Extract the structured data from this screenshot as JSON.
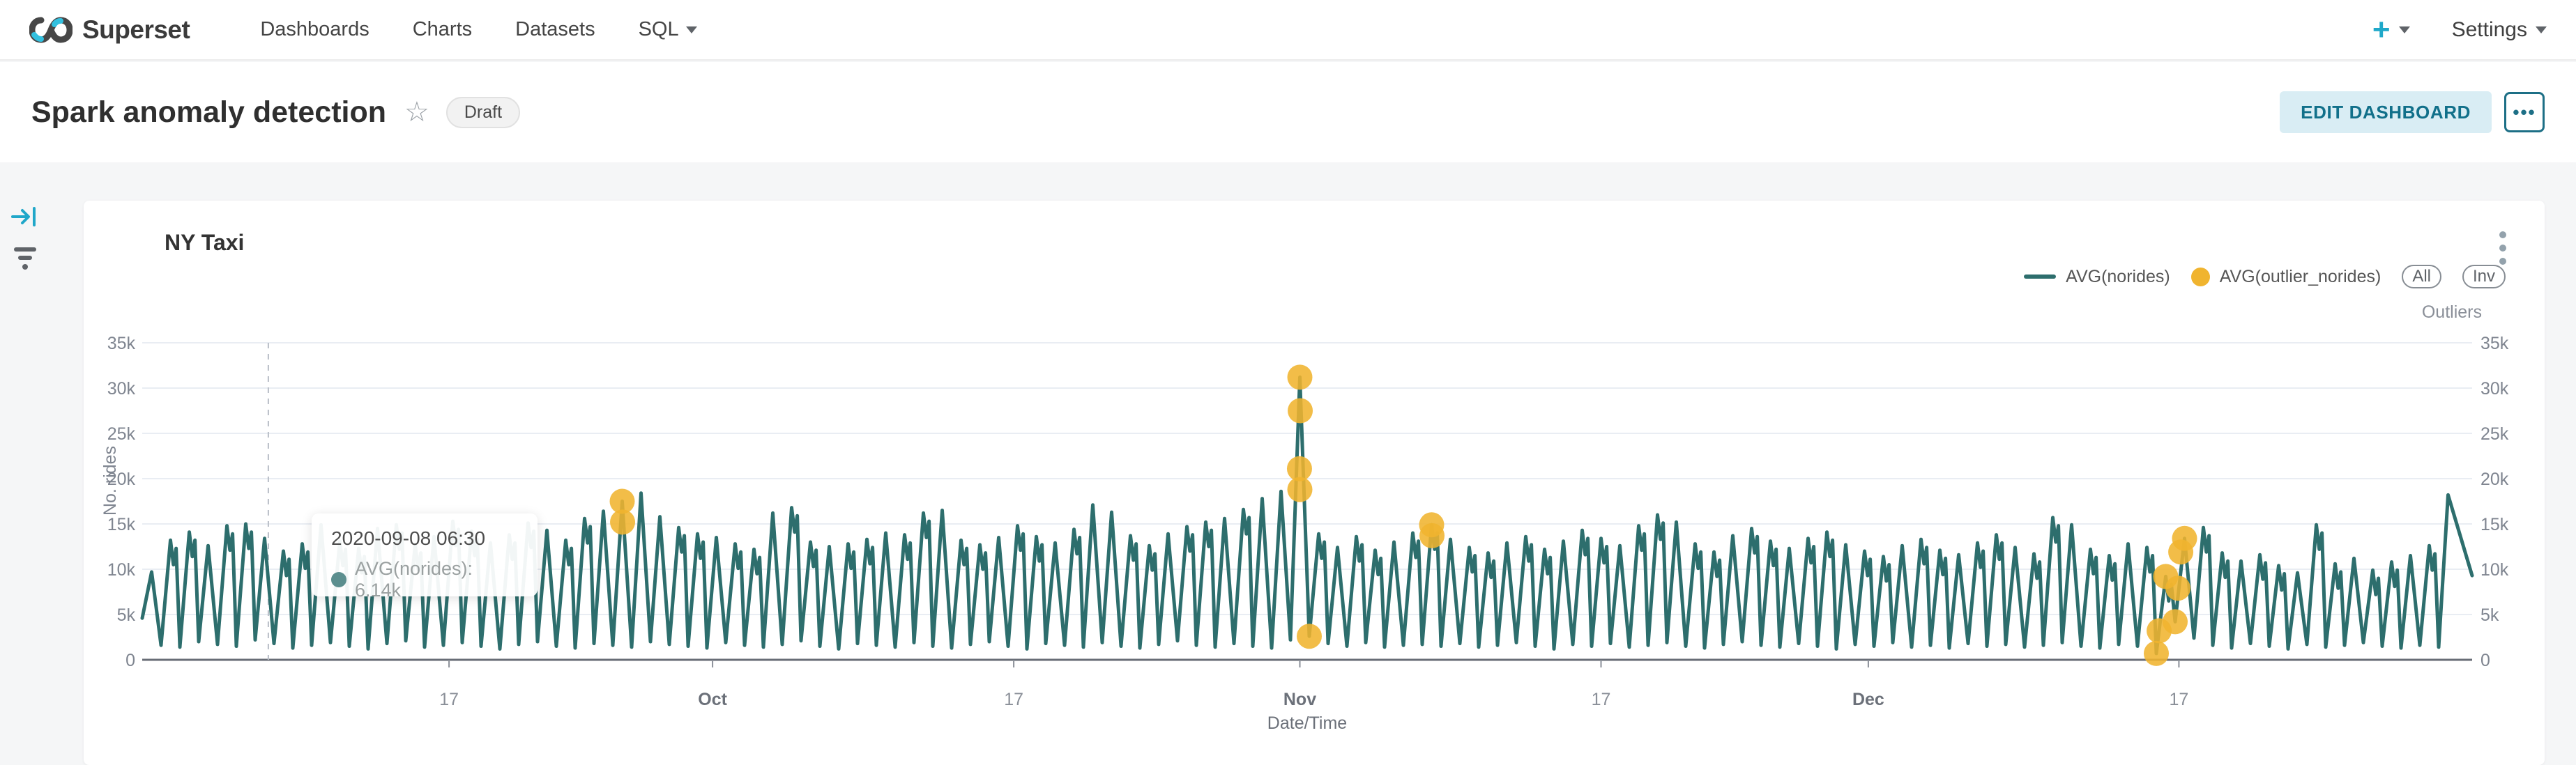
{
  "header": {
    "brand": "Superset",
    "nav": [
      "Dashboards",
      "Charts",
      "Datasets",
      "SQL"
    ],
    "plus_label": "+",
    "settings_label": "Settings"
  },
  "titlebar": {
    "title": "Spark anomaly detection",
    "star_icon": "☆",
    "badge": "Draft",
    "edit_button": "EDIT DASHBOARD",
    "more_button": "•••"
  },
  "panel": {
    "title": "NY Taxi",
    "kebab_icon": "vertical-ellipsis"
  },
  "legend": {
    "items": [
      {
        "label": "AVG(norides)",
        "swatch": "line",
        "color": "#2d6e6d"
      },
      {
        "label": "AVG(outlier_norides)",
        "swatch": "dot",
        "color": "#f0b42f"
      }
    ],
    "buttons": [
      "All",
      "Inv"
    ],
    "right_axis_title": "Outliers"
  },
  "tooltip": {
    "title": "2020-09-08 06:30",
    "row": "AVG(norides): 6.14k",
    "dot_color": "#5c8f8f"
  },
  "colors": {
    "line": "#2d6e6d",
    "outlier": "#f0b42f",
    "accent": "#20a7c9",
    "grid": "#e9edf3",
    "axis": "#686d76",
    "tick_text": "#7f8590",
    "month_text": "#6b7079",
    "crosshair": "#b9bec7"
  },
  "chart_data": {
    "type": "line",
    "title": "NY Taxi",
    "xlabel": "Date/Time",
    "ylabel": "No. rides",
    "y2label": "Outliers",
    "ylim": [
      0,
      35000
    ],
    "y_ticks": [
      "0",
      "5k",
      "10k",
      "15k",
      "20k",
      "25k",
      "30k",
      "35k"
    ],
    "x_ticks": [
      {
        "day": 16.3,
        "label": "17",
        "month": false
      },
      {
        "day": 30.3,
        "label": "Oct",
        "month": true
      },
      {
        "day": 46.3,
        "label": "17",
        "month": false
      },
      {
        "day": 61.5,
        "label": "Nov",
        "month": true
      },
      {
        "day": 77.5,
        "label": "17",
        "month": false
      },
      {
        "day": 91.7,
        "label": "Dec",
        "month": true
      },
      {
        "day": 108.2,
        "label": "17",
        "month": false
      }
    ],
    "crosshair_day": 6.7,
    "series_name": "AVG(norides)",
    "outlier_series_name": "AVG(outlier_norides)",
    "daily_peaks_k": [
      9.7,
      13.2,
      14.1,
      12.6,
      14.8,
      15.0,
      13.4,
      12.0,
      12.8,
      14.9,
      13.1,
      12.3,
      14.5,
      14.9,
      12.7,
      13.6,
      15.3,
      14.2,
      12.9,
      13.8,
      15.1,
      14.3,
      13.2,
      15.6,
      16.4,
      17.5,
      18.4,
      15.8,
      14.6,
      13.9,
      13.5,
      12.8,
      12.2,
      16.2,
      16.8,
      13.0,
      12.5,
      12.8,
      13.3,
      14.0,
      13.8,
      16.2,
      16.5,
      13.2,
      12.7,
      13.5,
      14.8,
      13.6,
      12.9,
      14.4,
      17.1,
      16.3,
      13.7,
      12.6,
      13.9,
      14.7,
      15.2,
      15.6,
      16.6,
      17.8,
      18.6,
      31.2,
      13.9,
      12.4,
      13.6,
      12.1,
      13.0,
      14.0,
      14.9,
      13.3,
      12.4,
      11.8,
      12.9,
      13.6,
      12.2,
      13.1,
      14.3,
      13.4,
      12.6,
      14.8,
      16.0,
      15.2,
      12.8,
      11.9,
      13.7,
      14.5,
      13.1,
      12.3,
      13.4,
      14.1,
      12.7,
      12.0,
      11.4,
      12.6,
      13.3,
      12.1,
      11.6,
      12.9,
      13.8,
      12.4,
      11.7,
      15.7,
      14.9,
      12.2,
      11.5,
      12.8,
      12.4,
      9.2,
      13.4,
      14.6,
      11.8,
      10.9,
      11.6,
      10.4,
      9.6,
      14.9,
      10.6,
      11.2,
      9.9,
      10.8,
      11.5,
      12.6,
      18.2
    ],
    "daily_troughs_k": [
      4.6,
      1.6,
      1.4,
      2.0,
      1.7,
      1.5,
      2.2,
      1.8,
      1.3,
      1.6,
      1.9,
      1.5,
      1.2,
      1.8,
      2.1,
      1.4,
      1.6,
      1.9,
      1.5,
      1.2,
      1.7,
      2.0,
      1.5,
      1.3,
      1.8,
      1.6,
      1.4,
      2.0,
      1.7,
      1.5,
      1.3,
      1.9,
      1.6,
      1.4,
      1.7,
      2.1,
      1.5,
      1.2,
      1.8,
      1.6,
      1.4,
      1.9,
      1.5,
      1.3,
      1.7,
      2.0,
      1.5,
      1.2,
      1.8,
      1.6,
      1.4,
      1.9,
      1.5,
      1.3,
      1.7,
      2.1,
      1.6,
      1.4,
      1.8,
      1.5,
      1.3,
      2.2,
      2.6,
      1.8,
      1.5,
      1.9,
      1.4,
      1.6,
      1.7,
      1.5,
      1.8,
      1.4,
      1.6,
      1.9,
      1.5,
      1.2,
      1.7,
      1.5,
      1.8,
      1.4,
      1.6,
      1.9,
      1.5,
      1.3,
      1.7,
      2.0,
      1.6,
      1.4,
      1.8,
      1.5,
      1.2,
      1.7,
      1.5,
      1.9,
      1.4,
      1.6,
      1.3,
      1.8,
      1.5,
      1.7,
      1.4,
      1.6,
      1.9,
      1.5,
      1.3,
      1.7,
      1.5,
      0.7,
      4.2,
      2.4,
      1.6,
      1.3,
      1.8,
      1.5,
      1.2,
      1.7,
      1.4,
      1.6,
      1.9,
      1.5,
      1.3,
      1.6,
      1.4
    ],
    "series_end_value_k": 9.3,
    "outliers": [
      {
        "day": 25.5,
        "value_k": 17.5
      },
      {
        "day": 25.52,
        "value_k": 15.2
      },
      {
        "day": 61.5,
        "value_k": 31.2
      },
      {
        "day": 61.52,
        "value_k": 27.5
      },
      {
        "day": 61.48,
        "value_k": 21.1
      },
      {
        "day": 61.5,
        "value_k": 18.8
      },
      {
        "day": 62.0,
        "value_k": 2.6
      },
      {
        "day": 68.5,
        "value_k": 14.9
      },
      {
        "day": 68.52,
        "value_k": 13.7
      },
      {
        "day": 107.0,
        "value_k": 0.7
      },
      {
        "day": 107.15,
        "value_k": 3.2
      },
      {
        "day": 107.5,
        "value_k": 9.2
      },
      {
        "day": 108.0,
        "value_k": 4.2
      },
      {
        "day": 108.15,
        "value_k": 7.9
      },
      {
        "day": 108.3,
        "value_k": 11.9
      },
      {
        "day": 108.5,
        "value_k": 13.4
      }
    ]
  }
}
